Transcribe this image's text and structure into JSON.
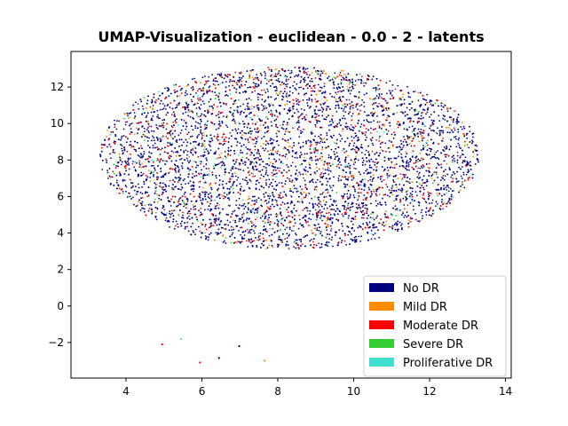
{
  "chart_data": {
    "type": "scatter",
    "title": "UMAP-Visualization - euclidean - 0.0 - 2 - latents",
    "xlabel": "",
    "ylabel": "",
    "xlim": [
      2.55,
      14.15
    ],
    "ylim": [
      -3.95,
      13.95
    ],
    "xticks": [
      4,
      6,
      8,
      10,
      12,
      14
    ],
    "yticks": [
      -2,
      0,
      2,
      4,
      6,
      8,
      10,
      12
    ],
    "grid": false,
    "legend_position": "lower-right",
    "main_cluster": {
      "description_region": "ellipse",
      "center": [
        8.3,
        8.1
      ],
      "radius_x": 5.0,
      "radius_y": 5.1,
      "x_range": [
        3.2,
        13.5
      ],
      "y_range": [
        2.8,
        13.2
      ]
    },
    "series": [
      {
        "name": "No DR",
        "color": "#000080",
        "share": 0.73
      },
      {
        "name": "Mild DR",
        "color": "#ff8c00",
        "share": 0.07
      },
      {
        "name": "Moderate DR",
        "color": "#ff0000",
        "share": 0.15
      },
      {
        "name": "Severe DR",
        "color": "#32cd32",
        "share": 0.025
      },
      {
        "name": "Proliferative DR",
        "color": "#40e0d0",
        "share": 0.025
      }
    ],
    "outliers": [
      {
        "x": 4.95,
        "y": -2.1,
        "series": "Moderate DR"
      },
      {
        "x": 5.45,
        "y": -1.8,
        "series": "Proliferative DR"
      },
      {
        "x": 5.95,
        "y": -3.1,
        "series": "Moderate DR"
      },
      {
        "x": 6.45,
        "y": -2.85,
        "series": "No DR"
      },
      {
        "x": 6.98,
        "y": -2.2,
        "series": "No DR"
      },
      {
        "x": 7.65,
        "y": -3.0,
        "series": "Mild DR"
      }
    ]
  }
}
